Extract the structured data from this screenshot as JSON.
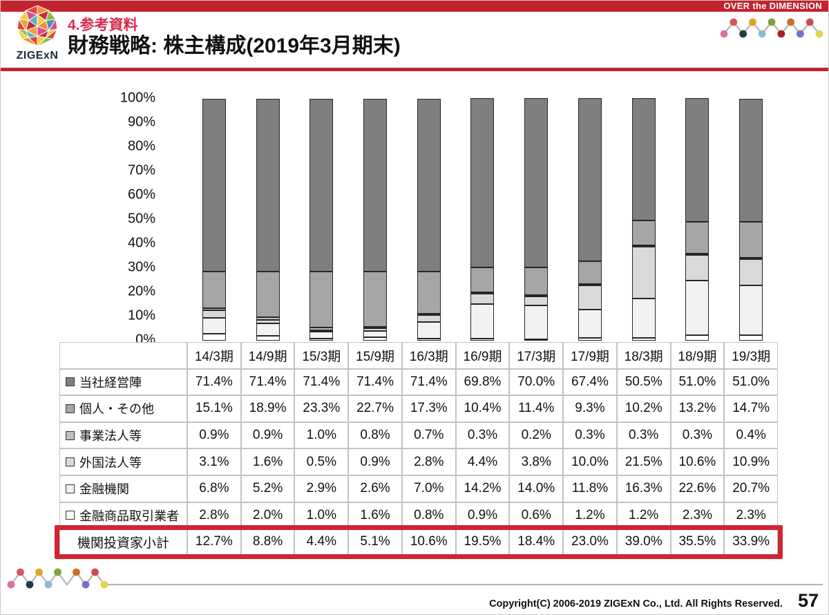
{
  "page": {
    "top_strip": {
      "text": "OVER the DIMENSION",
      "bg": "#c3232e"
    },
    "logo": {
      "text": "ZIGExN"
    },
    "header": {
      "section_label": "4.参考資料",
      "title": "財務戦略: 株主構成(2019年3月期末)",
      "accent_color": "#c3232e",
      "section_label_color": "#d8294a"
    },
    "footer": {
      "copyright": "Copyright(C) 2006-2019 ZIGExN Co., Ltd. All Rights Reserved.",
      "page_number": "57"
    }
  },
  "decor": {
    "zigzag_colors_top": [
      "#d773a2",
      "#d8575c",
      "#1d3d47",
      "#e3a424",
      "#8bbccc",
      "#7fa33a",
      "#aa1f24",
      "#cc6f2c",
      "#7472c8",
      "#cf4a52",
      "#e3d44a"
    ],
    "zigzag_colors_bottom": [
      "#d773a2",
      "#d8575c",
      "#1d3d47",
      "#e3a424",
      "#8bbccc",
      "#7fa33a",
      null,
      "#cc6f2c",
      "#7472c8",
      "#cf4a52",
      "#e3d44a"
    ],
    "zigzag_line_color": "#b5b5b5"
  },
  "chart_data": {
    "type": "bar",
    "stacked": true,
    "unit": "%",
    "title": "",
    "xlabel": "",
    "ylabel": "",
    "ylim": [
      0,
      100
    ],
    "grid": false,
    "legend_position": "table row labels",
    "stack_order": "series listed here appear top-to-bottom inside each bar (last series at bar bottom)",
    "bar_border_color": "#262626",
    "y_ticks": [
      "100%",
      "90%",
      "80%",
      "70%",
      "60%",
      "50%",
      "40%",
      "30%",
      "20%",
      "10%",
      "0%"
    ],
    "categories": [
      "14/3期",
      "14/9期",
      "15/3期",
      "15/9期",
      "16/3期",
      "16/9期",
      "17/3期",
      "17/9期",
      "18/3期",
      "18/9期",
      "19/3期"
    ],
    "series": [
      {
        "name": "当社経営陣",
        "color": "#7f7f7f",
        "values": [
          71.4,
          71.4,
          71.4,
          71.4,
          71.4,
          69.8,
          70.0,
          67.4,
          50.5,
          51.0,
          51.0
        ]
      },
      {
        "name": "個人・その他",
        "color": "#a6a6a6",
        "values": [
          15.1,
          18.9,
          23.3,
          22.7,
          17.3,
          10.4,
          11.4,
          9.3,
          10.2,
          13.2,
          14.7
        ]
      },
      {
        "name": "事業法人等",
        "color": "#bfbfbf",
        "values": [
          0.9,
          0.9,
          1.0,
          0.8,
          0.7,
          0.3,
          0.2,
          0.3,
          0.3,
          0.3,
          0.4
        ]
      },
      {
        "name": "外国法人等",
        "color": "#d9d9d9",
        "values": [
          3.1,
          1.6,
          0.5,
          0.9,
          2.8,
          4.4,
          3.8,
          10.0,
          21.5,
          10.6,
          10.9
        ]
      },
      {
        "name": "金融機関",
        "color": "#f2f2f2",
        "values": [
          6.8,
          5.2,
          2.9,
          2.6,
          7.0,
          14.2,
          14.0,
          11.8,
          16.3,
          22.6,
          20.7
        ]
      },
      {
        "name": "金融商品取引業者",
        "color": "#ffffff",
        "values": [
          2.8,
          2.0,
          1.0,
          1.6,
          0.8,
          0.9,
          0.6,
          1.2,
          1.2,
          2.3,
          2.3
        ]
      }
    ],
    "summary_row": {
      "name": "機関投資家小計",
      "values": [
        12.7,
        8.8,
        4.4,
        5.1,
        10.6,
        19.5,
        18.4,
        23.0,
        39.0,
        35.5,
        33.9
      ],
      "highlight_color": "#d02531"
    }
  }
}
